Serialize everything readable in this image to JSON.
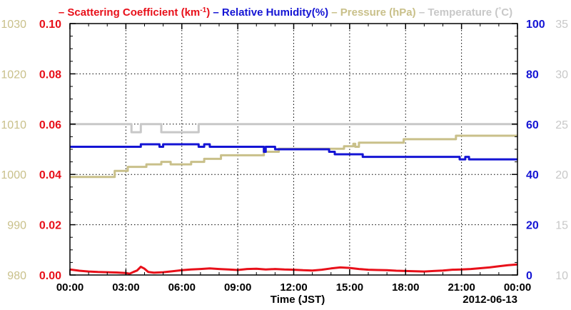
{
  "chart_data": {
    "type": "line",
    "xlabel": "Time (JST)",
    "date_label": "2012-06-13",
    "x_ticks": [
      "00:00",
      "03:00",
      "06:00",
      "09:00",
      "12:00",
      "15:00",
      "18:00",
      "21:00",
      "00:00"
    ],
    "x_range_hours": [
      0,
      24
    ],
    "grid": true,
    "legend": [
      {
        "key": "scattering",
        "text": "Scattering Coefficient (km",
        "sup": "-1",
        "after": ")",
        "color": "#e8101a"
      },
      {
        "key": "humidity",
        "text": "Relative Humidity(%)",
        "color": "#1414d4"
      },
      {
        "key": "pressure",
        "text": "Pressure (hPa)",
        "color": "#c9c08a"
      },
      {
        "key": "temperature",
        "text": "Temperature (",
        "sup": "°",
        "after": "C)",
        "color": "#c8c8c8"
      }
    ],
    "axes": {
      "pressure": {
        "side": "left-outer",
        "range": [
          980,
          1030
        ],
        "ticks": [
          "980",
          "990",
          "1000",
          "1010",
          "1020",
          "1030"
        ],
        "color": "#c9c08a"
      },
      "scattering": {
        "side": "left-inner",
        "range": [
          0,
          0.1
        ],
        "ticks": [
          "0.00",
          "0.02",
          "0.04",
          "0.06",
          "0.08",
          "0.10"
        ],
        "color": "#e8101a"
      },
      "humidity": {
        "side": "right-inner",
        "range": [
          0,
          100
        ],
        "ticks": [
          "0",
          "20",
          "40",
          "60",
          "80",
          "100"
        ],
        "color": "#1414d4"
      },
      "temperature": {
        "side": "right-outer",
        "range": [
          10,
          35
        ],
        "ticks": [
          "10",
          "15",
          "20",
          "25",
          "30",
          "35"
        ],
        "color": "#c8c8c8"
      }
    },
    "series": [
      {
        "key": "temperature",
        "axis": "temperature",
        "step": true,
        "values": [
          [
            0,
            25
          ],
          [
            3.3,
            25
          ],
          [
            3.3,
            24.2
          ],
          [
            3.8,
            24.2
          ],
          [
            3.8,
            25
          ],
          [
            4.9,
            25
          ],
          [
            4.9,
            24.2
          ],
          [
            6.9,
            24.2
          ],
          [
            6.9,
            25
          ],
          [
            24,
            25
          ]
        ]
      },
      {
        "key": "pressure",
        "axis": "pressure",
        "step": true,
        "values": [
          [
            0,
            999.5
          ],
          [
            2.4,
            999.5
          ],
          [
            2.4,
            1000.7
          ],
          [
            3.1,
            1000.7
          ],
          [
            3.1,
            1001.5
          ],
          [
            4.1,
            1001.5
          ],
          [
            4.1,
            1002.0
          ],
          [
            4.9,
            1002.0
          ],
          [
            4.9,
            1002.5
          ],
          [
            5.4,
            1002.5
          ],
          [
            5.4,
            1002.0
          ],
          [
            6.5,
            1002.0
          ],
          [
            6.5,
            1002.5
          ],
          [
            7.2,
            1002.5
          ],
          [
            7.2,
            1003.1
          ],
          [
            8.1,
            1003.1
          ],
          [
            8.1,
            1003.8
          ],
          [
            10.4,
            1003.8
          ],
          [
            10.4,
            1004.5
          ],
          [
            11.2,
            1004.5
          ],
          [
            11.2,
            1005.1
          ],
          [
            14.7,
            1005.1
          ],
          [
            14.7,
            1005.6
          ],
          [
            15.2,
            1005.6
          ],
          [
            15.2,
            1006.1
          ],
          [
            15.3,
            1006.1
          ],
          [
            15.3,
            1005.5
          ],
          [
            15.5,
            1005.5
          ],
          [
            15.5,
            1006.3
          ],
          [
            17.9,
            1006.3
          ],
          [
            17.9,
            1007.0
          ],
          [
            20.7,
            1007.0
          ],
          [
            20.7,
            1007.7
          ],
          [
            24,
            1007.7
          ]
        ]
      },
      {
        "key": "humidity",
        "axis": "humidity",
        "step": true,
        "values": [
          [
            0,
            51
          ],
          [
            3.8,
            51
          ],
          [
            3.8,
            52
          ],
          [
            4.8,
            52
          ],
          [
            4.8,
            51
          ],
          [
            5.0,
            51
          ],
          [
            5.0,
            52
          ],
          [
            6.9,
            52
          ],
          [
            6.9,
            51
          ],
          [
            7.2,
            51
          ],
          [
            7.2,
            52
          ],
          [
            7.5,
            52
          ],
          [
            7.5,
            51
          ],
          [
            10.4,
            51
          ],
          [
            10.4,
            49
          ],
          [
            10.5,
            49
          ],
          [
            10.5,
            51
          ],
          [
            11.0,
            51
          ],
          [
            11.0,
            50
          ],
          [
            13.9,
            50
          ],
          [
            13.9,
            49
          ],
          [
            14.2,
            49
          ],
          [
            14.2,
            48
          ],
          [
            15.7,
            48
          ],
          [
            15.7,
            47
          ],
          [
            20.9,
            47
          ],
          [
            20.9,
            46
          ],
          [
            21.2,
            46
          ],
          [
            21.2,
            47
          ],
          [
            21.4,
            47
          ],
          [
            21.4,
            46
          ],
          [
            24,
            46
          ]
        ]
      },
      {
        "key": "scattering",
        "axis": "scattering",
        "step": false,
        "values": [
          [
            0,
            0.0022
          ],
          [
            0.5,
            0.0017
          ],
          [
            1.0,
            0.0014
          ],
          [
            1.5,
            0.0012
          ],
          [
            2.0,
            0.0011
          ],
          [
            2.5,
            0.001
          ],
          [
            3.0,
            0.0008
          ],
          [
            3.2,
            0.0005
          ],
          [
            3.4,
            0.0012
          ],
          [
            3.6,
            0.0018
          ],
          [
            3.8,
            0.0033
          ],
          [
            4.0,
            0.0025
          ],
          [
            4.2,
            0.0012
          ],
          [
            4.5,
            0.0009
          ],
          [
            5.0,
            0.0011
          ],
          [
            5.5,
            0.0015
          ],
          [
            6.0,
            0.0019
          ],
          [
            6.5,
            0.0022
          ],
          [
            7.0,
            0.0024
          ],
          [
            7.5,
            0.0026
          ],
          [
            8.0,
            0.0024
          ],
          [
            8.5,
            0.0022
          ],
          [
            9.0,
            0.002
          ],
          [
            9.5,
            0.0024
          ],
          [
            10.0,
            0.0025
          ],
          [
            10.5,
            0.0022
          ],
          [
            11.0,
            0.0024
          ],
          [
            11.5,
            0.0022
          ],
          [
            12.0,
            0.0021
          ],
          [
            12.5,
            0.0019
          ],
          [
            13.0,
            0.0018
          ],
          [
            13.5,
            0.0021
          ],
          [
            14.0,
            0.0026
          ],
          [
            14.5,
            0.003
          ],
          [
            15.0,
            0.0028
          ],
          [
            15.5,
            0.0024
          ],
          [
            16.0,
            0.0021
          ],
          [
            16.5,
            0.002
          ],
          [
            17.0,
            0.0019
          ],
          [
            17.5,
            0.0017
          ],
          [
            18.0,
            0.0016
          ],
          [
            18.5,
            0.0015
          ],
          [
            19.0,
            0.0014
          ],
          [
            19.5,
            0.0016
          ],
          [
            20.0,
            0.0018
          ],
          [
            20.5,
            0.0021
          ],
          [
            21.0,
            0.0022
          ],
          [
            21.5,
            0.0024
          ],
          [
            22.0,
            0.0027
          ],
          [
            22.5,
            0.003
          ],
          [
            23.0,
            0.0035
          ],
          [
            23.5,
            0.0039
          ],
          [
            24,
            0.0042
          ]
        ]
      }
    ]
  }
}
